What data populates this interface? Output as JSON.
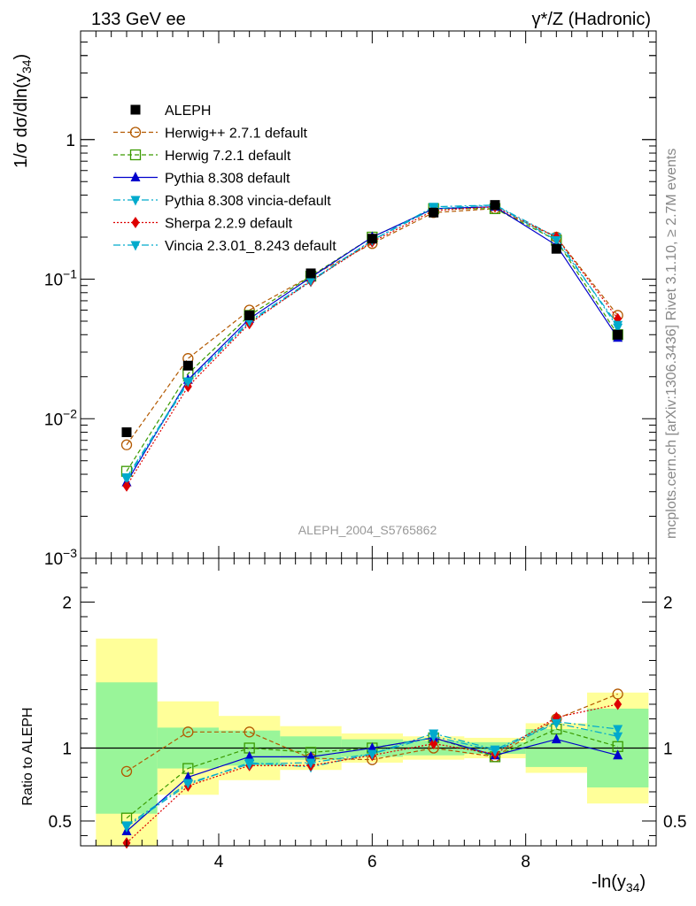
{
  "header": {
    "left": "133 GeV ee",
    "right": "γ*/Z (Hadronic)"
  },
  "side": {
    "rivet": "Rivet 3.1.10, ≥ 2.7M events",
    "mcplots": "mcplots.cern.ch [arXiv:1306.3436]"
  },
  "watermark": "ALEPH_2004_S5765862",
  "labels": {
    "ylabel_main": "1/σ  dσ/dln(y34)",
    "ylabel_ratio": "Ratio to ALEPH",
    "xlabel": "-ln(y34)"
  },
  "colors": {
    "herwigpp": "#b35900",
    "herwig7": "#3a9a00",
    "pythia": "#0000cc",
    "pythia_vincia": "#00aacc",
    "sherpa": "#dd0000",
    "vincia": "#00aacc",
    "band_inner": "#99f599",
    "band_outer": "#ffff99"
  },
  "chart_data": {
    "type": "line",
    "xlabel": "-ln(y34)",
    "ylabel": "1/σ dσ/dln(y34)",
    "xlim": [
      2.2,
      9.7
    ],
    "ylim": [
      0.001,
      6
    ],
    "yscale": "log",
    "ratio_ylim": [
      0.33,
      2.3
    ],
    "ratio_ylabel": "Ratio to ALEPH",
    "xticks": [
      "4",
      "6",
      "8"
    ],
    "yticks_main": [
      "10^-3",
      "10^-2",
      "10^-1",
      "1"
    ],
    "yticks_ratio": [
      "0.5",
      "1",
      "2"
    ],
    "x": [
      2.8,
      3.6,
      4.4,
      5.2,
      6.0,
      6.8,
      7.6,
      8.4,
      9.2
    ],
    "bin_edges": [
      2.4,
      3.2,
      4.0,
      4.8,
      5.6,
      6.4,
      7.2,
      8.0,
      8.8,
      9.6
    ],
    "data": {
      "name": "ALEPH",
      "values": [
        0.008,
        0.024,
        0.055,
        0.11,
        0.195,
        0.3,
        0.34,
        0.165,
        0.04
      ]
    },
    "band_inner": [
      1.45,
      1.14,
      1.12,
      1.08,
      1.06,
      1.05,
      1.04,
      1.13,
      1.27
    ],
    "band_outer": [
      1.75,
      1.32,
      1.22,
      1.15,
      1.1,
      1.08,
      1.07,
      1.17,
      1.38
    ],
    "series": [
      {
        "name": "Herwig++ 2.7.1 default",
        "key": "herwigpp",
        "marker": "circle-open",
        "dash": "5,3",
        "values": [
          0.0065,
          0.027,
          0.06,
          0.105,
          0.18,
          0.3,
          0.32,
          0.2,
          0.055
        ]
      },
      {
        "name": "Herwig 7.2.1 default",
        "key": "herwig7",
        "marker": "square-open",
        "dash": "5,3",
        "values": [
          0.0042,
          0.021,
          0.055,
          0.105,
          0.2,
          0.32,
          0.32,
          0.19,
          0.04
        ]
      },
      {
        "name": "Pythia 8.308 default",
        "key": "pythia",
        "marker": "triangle-up",
        "dash": "",
        "values": [
          0.0035,
          0.019,
          0.052,
          0.103,
          0.2,
          0.32,
          0.33,
          0.175,
          0.038
        ]
      },
      {
        "name": "Pythia 8.308 vincia-default",
        "key": "pythia_vincia",
        "marker": "triangle-down",
        "dash": "8,3,2,3",
        "values": [
          0.0037,
          0.018,
          0.049,
          0.096,
          0.19,
          0.33,
          0.34,
          0.2,
          0.045
        ]
      },
      {
        "name": "Sherpa 2.2.9 default",
        "key": "sherpa",
        "marker": "diamond",
        "dash": "2,2",
        "values": [
          0.0033,
          0.017,
          0.048,
          0.097,
          0.185,
          0.31,
          0.33,
          0.2,
          0.052
        ]
      },
      {
        "name": "Vincia 2.3.01_8.243 default",
        "key": "vincia",
        "marker": "triangle-down",
        "dash": "8,3,2,3",
        "values": [
          0.0038,
          0.0185,
          0.05,
          0.098,
          0.19,
          0.32,
          0.34,
          0.19,
          0.047
        ]
      }
    ],
    "ratio_series": [
      {
        "key": "herwigpp",
        "values": [
          0.84,
          1.11,
          1.11,
          0.93,
          0.92,
          1.0,
          0.94,
          1.2,
          1.37
        ]
      },
      {
        "key": "herwig7",
        "values": [
          0.52,
          0.86,
          1.0,
          0.97,
          1.0,
          1.07,
          0.94,
          1.13,
          1.01
        ]
      },
      {
        "key": "pythia",
        "values": [
          0.43,
          0.8,
          0.94,
          0.94,
          1.0,
          1.07,
          0.95,
          1.06,
          0.95
        ]
      },
      {
        "key": "pythia_vincia",
        "values": [
          0.46,
          0.75,
          0.9,
          0.87,
          0.96,
          1.1,
          0.99,
          1.18,
          1.13
        ]
      },
      {
        "key": "sherpa",
        "values": [
          0.35,
          0.74,
          0.88,
          0.88,
          0.95,
          1.03,
          0.96,
          1.21,
          1.3
        ]
      },
      {
        "key": "vincia",
        "values": [
          0.47,
          0.76,
          0.89,
          0.9,
          0.96,
          1.08,
          0.98,
          1.17,
          1.08
        ]
      }
    ]
  }
}
